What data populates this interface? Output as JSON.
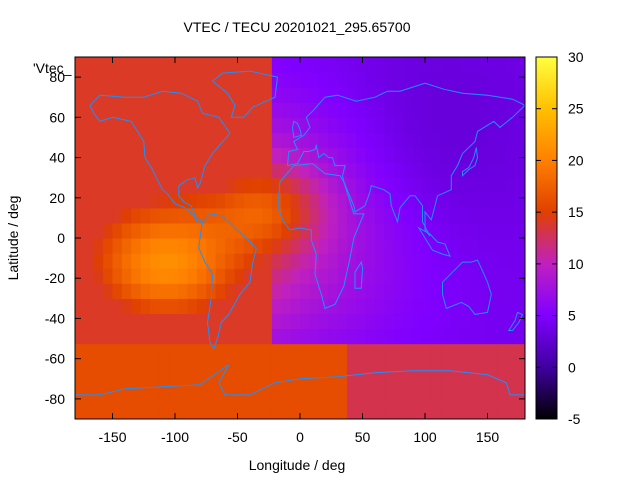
{
  "chart_data": {
    "type": "heatmap",
    "title": "VTEC / TECU 20201021_295.65700",
    "xlabel": "Longitude / deg",
    "ylabel": "Latitude / deg",
    "xlim": [
      -180,
      180
    ],
    "ylim": [
      -90,
      90
    ],
    "x_ticks": [
      -150,
      -100,
      -50,
      0,
      50,
      100,
      150
    ],
    "y_ticks": [
      -80,
      -60,
      -40,
      -20,
      0,
      20,
      40,
      60,
      80
    ],
    "colorbar": {
      "min": -5,
      "max": 30,
      "ticks": [
        -5,
        0,
        5,
        10,
        15,
        20,
        25,
        30
      ]
    },
    "colormap": [
      "#000000",
      "#4000a0",
      "#8000ff",
      "#c020c0",
      "#e04000",
      "#ff8000",
      "#ffc000",
      "#ffff40"
    ],
    "legend_label": "'Vtec_",
    "coastline_color": "#1e90ff",
    "field_features": [
      {
        "lon": -110,
        "lat": -15,
        "sigma_lon": 45,
        "sigma_lat": 22,
        "amp": 10
      },
      {
        "lon": -25,
        "lat": 15,
        "sigma_lon": 30,
        "sigma_lat": 15,
        "amp": 6
      },
      {
        "lon": -80,
        "lat": 5,
        "sigma_lon": 110,
        "sigma_lat": 45,
        "amp": 8
      }
    ]
  }
}
